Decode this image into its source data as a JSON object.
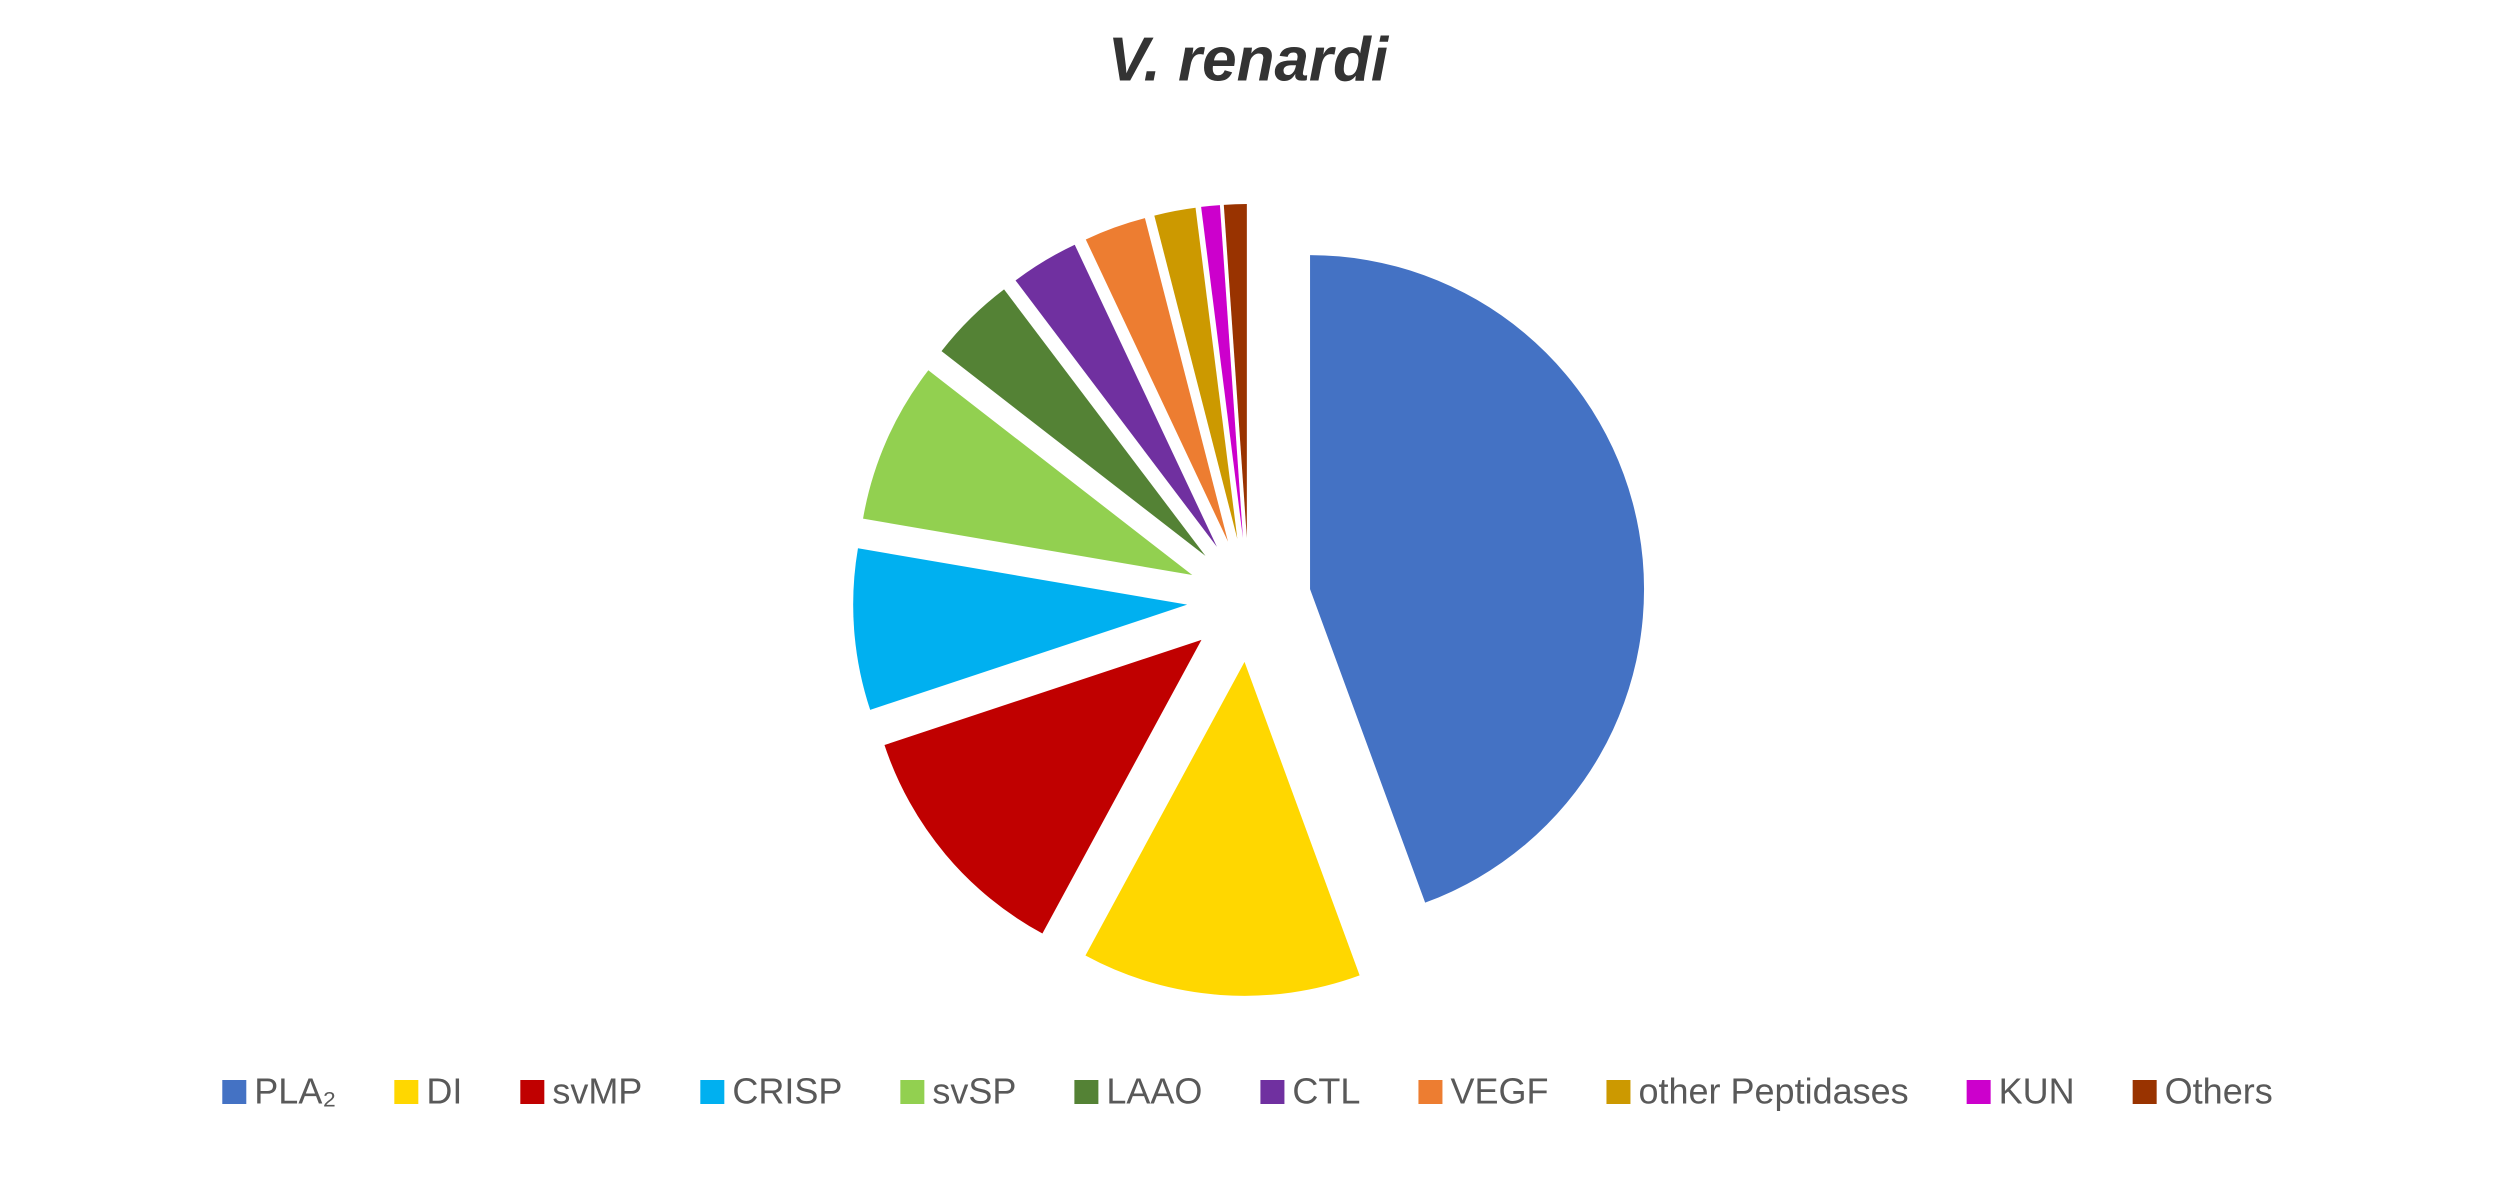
{
  "chart_data": {
    "type": "pie",
    "title": "V. renardi",
    "categories": [
      "PLA₂",
      "DI",
      "svMP",
      "CRISP",
      "svSP",
      "LAAO",
      "CTL",
      "VEGF",
      "other Peptidases",
      "KUN",
      "Others"
    ],
    "values": [
      44.4,
      13.5,
      12,
      7.8,
      7.8,
      4.2,
      3.3,
      3,
      2,
      0.9,
      1.1
    ],
    "colors": [
      "#4472c4",
      "#ffd700",
      "#c00000",
      "#00b0f0",
      "#92d050",
      "#548235",
      "#7030a0",
      "#ed7d31",
      "#cc9900",
      "#cc00cc",
      "#993300"
    ],
    "legend": "bottom",
    "exploded": true
  }
}
